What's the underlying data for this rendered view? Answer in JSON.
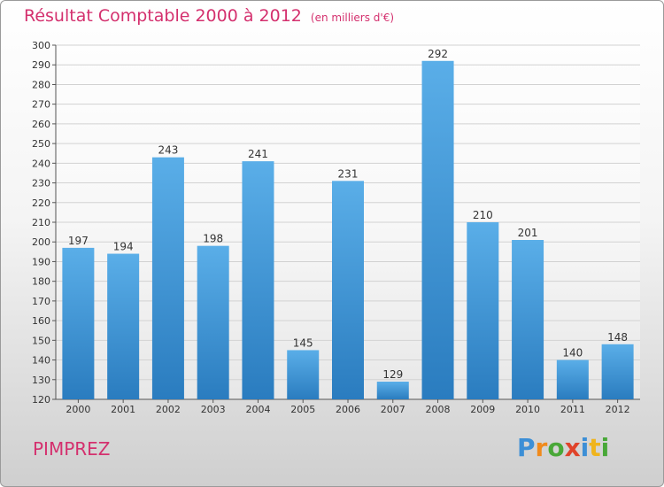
{
  "title": "Résultat Comptable 2000 à 2012",
  "subtitle": "(en milliers d'€)",
  "city": "PIMPREZ",
  "logo": [
    "P",
    "r",
    "o",
    "x",
    "i",
    "t",
    "i"
  ],
  "colors": {
    "title": "#d4306e",
    "bar_top": "#5aaee8",
    "bar_bottom": "#2a7cbf",
    "logo": [
      "#3c8fd6",
      "#f08a1c",
      "#49a838",
      "#e0432a",
      "#3c8fd6",
      "#f0b41c",
      "#49a838"
    ]
  },
  "chart_data": {
    "type": "bar",
    "title": "Résultat Comptable 2000 à 2012",
    "subtitle": "(en milliers d'€)",
    "xlabel": "",
    "ylabel": "",
    "categories": [
      "2000",
      "2001",
      "2002",
      "2003",
      "2004",
      "2005",
      "2006",
      "2007",
      "2008",
      "2009",
      "2010",
      "2011",
      "2012"
    ],
    "values": [
      197,
      194,
      243,
      198,
      241,
      145,
      231,
      129,
      292,
      210,
      201,
      140,
      148
    ],
    "ylim": [
      120,
      300
    ],
    "yticks": [
      120,
      130,
      140,
      150,
      160,
      170,
      180,
      190,
      200,
      210,
      220,
      230,
      240,
      250,
      260,
      270,
      280,
      290,
      300
    ],
    "grid": true,
    "legend": "none"
  }
}
